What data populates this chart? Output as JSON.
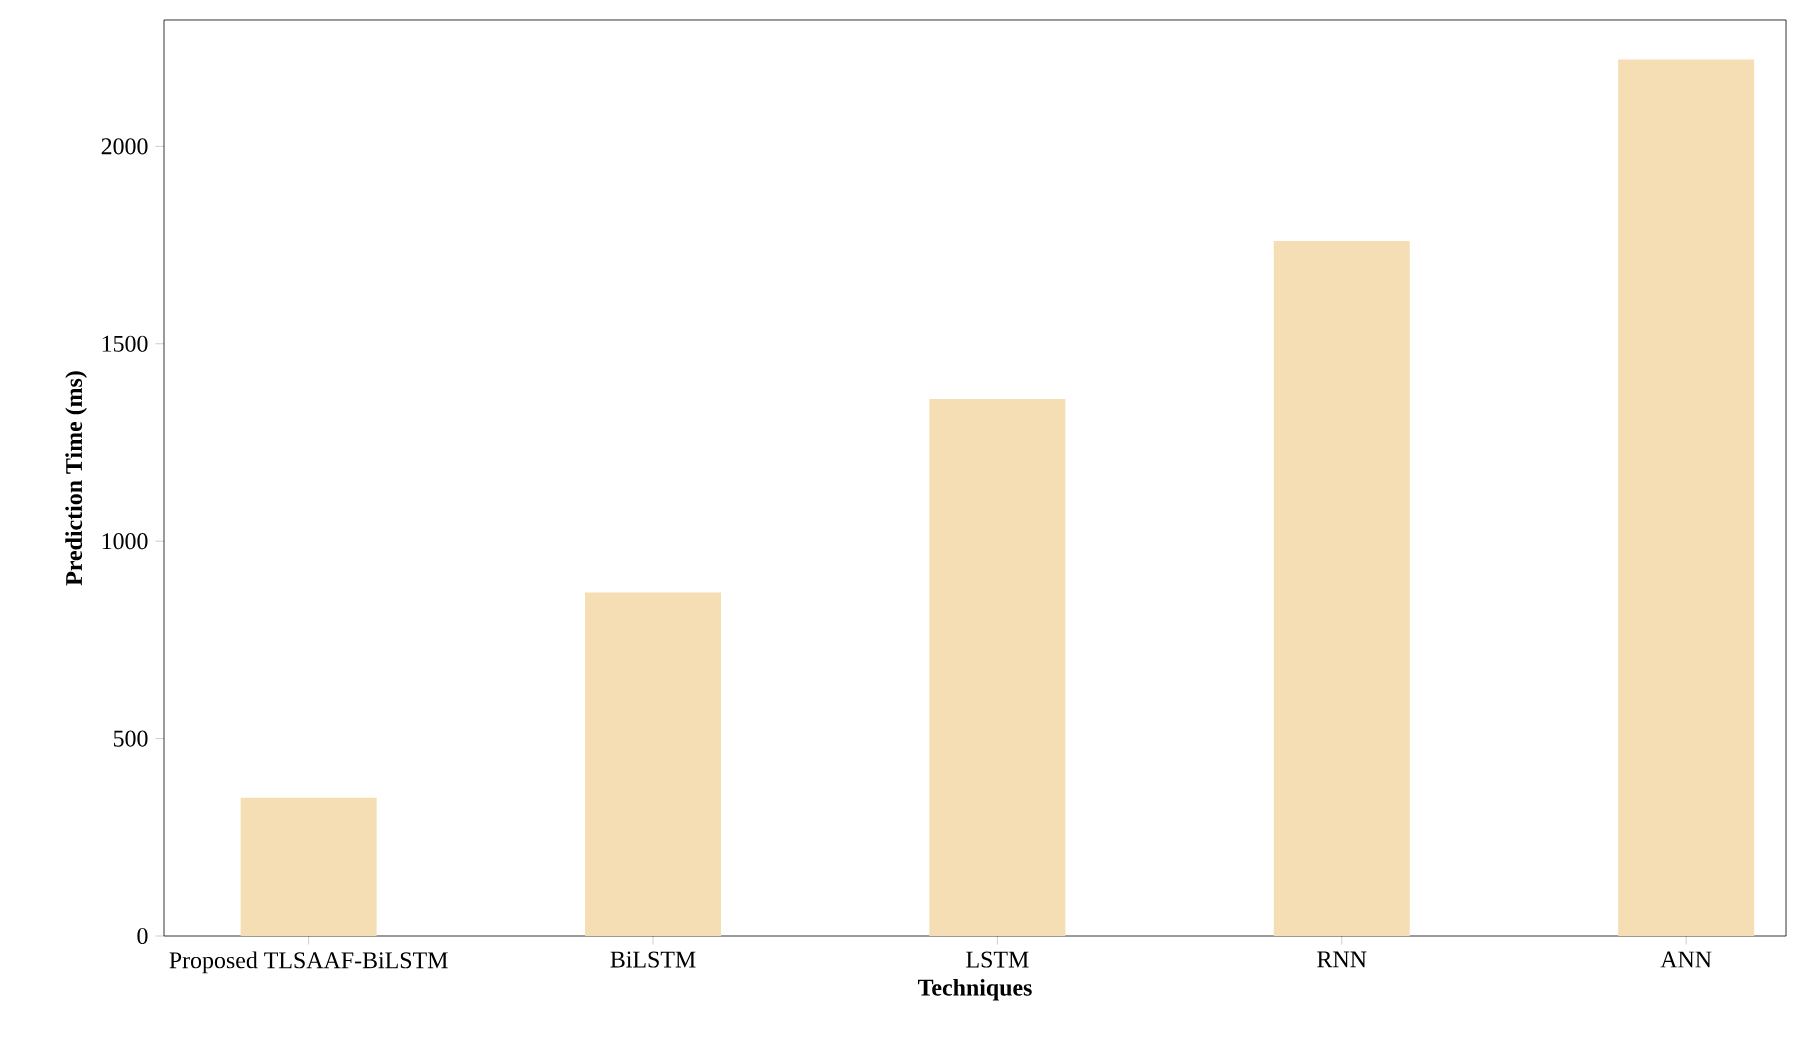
{
  "chart_data": {
    "type": "bar",
    "xlabel": "Techniques",
    "ylabel": "Prediction Time (ms)",
    "categories": [
      "Proposed TLSAAF-BiLSTM",
      "BiLSTM",
      "LSTM",
      "RNN",
      "ANN"
    ],
    "values": [
      350,
      870,
      1360,
      1760,
      2220
    ],
    "color": "#f5deb3",
    "ylim": [
      0,
      2320
    ],
    "yticks": [
      0,
      500,
      1000,
      1500,
      2000
    ]
  }
}
